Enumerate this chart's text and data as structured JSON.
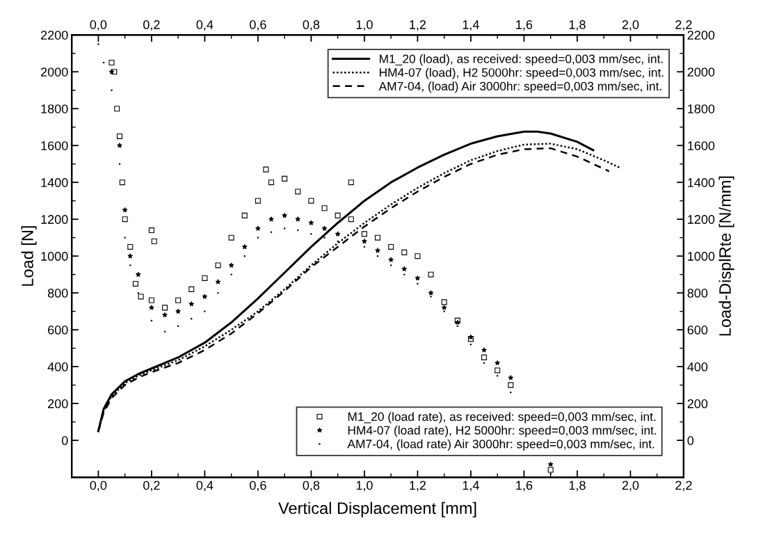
{
  "chart_data": {
    "type": "line",
    "xlabel": "Vertical Displacement [mm]",
    "ylabel": "Load [N]",
    "y2label": "Load-DisplRte [N/mm]",
    "xlim": [
      -0.1,
      2.2
    ],
    "ylim": [
      -200,
      2200
    ],
    "y2lim": [
      -200,
      2200
    ],
    "x2lim": [
      -0.1,
      2.2
    ],
    "xticks": [
      {
        "value": 0,
        "label": "0,0"
      },
      {
        "value": 0.2,
        "label": "0,2"
      },
      {
        "value": 0.4,
        "label": "0,4"
      },
      {
        "value": 0.6,
        "label": "0,6"
      },
      {
        "value": 0.8,
        "label": "0,8"
      },
      {
        "value": 1.0,
        "label": "1,0"
      },
      {
        "value": 1.2,
        "label": "1,2"
      },
      {
        "value": 1.4,
        "label": "1,4"
      },
      {
        "value": 1.6,
        "label": "1,6"
      },
      {
        "value": 1.8,
        "label": "1,8"
      },
      {
        "value": 2.0,
        "label": "2,0"
      },
      {
        "value": 2.2,
        "label": "2,2"
      }
    ],
    "x2ticks": [
      {
        "value": 0,
        "label": "0,0"
      },
      {
        "value": 0.2,
        "label": "0,2"
      },
      {
        "value": 0.4,
        "label": "0,4"
      },
      {
        "value": 0.6,
        "label": "0,6"
      },
      {
        "value": 0.8,
        "label": "0,8"
      },
      {
        "value": 1.0,
        "label": "1,0"
      },
      {
        "value": 1.2,
        "label": "1,2"
      },
      {
        "value": 1.4,
        "label": "1,4"
      },
      {
        "value": 1.6,
        "label": "1,6"
      },
      {
        "value": 1.8,
        "label": "1,8"
      },
      {
        "value": 2.0,
        "label": "2,0"
      },
      {
        "value": 2.2,
        "label": "2,2"
      }
    ],
    "yticks": [
      0,
      200,
      400,
      600,
      800,
      1000,
      1200,
      1400,
      1600,
      1800,
      2000,
      2200
    ],
    "y2ticks": [
      0,
      200,
      400,
      600,
      800,
      1000,
      1200,
      1400,
      1600,
      1800,
      2000,
      2200
    ],
    "grid": false,
    "legend": [
      "top right",
      "bottom right"
    ],
    "series": [
      {
        "name": "M1_20 (load), as received: speed=0,003 mm/sec, int.",
        "line_style": "solid",
        "color": "#000000",
        "x": [
          0,
          0.02,
          0.05,
          0.1,
          0.15,
          0.2,
          0.3,
          0.4,
          0.5,
          0.6,
          0.7,
          0.8,
          0.9,
          1.0,
          1.1,
          1.2,
          1.3,
          1.4,
          1.5,
          1.6,
          1.65,
          1.7,
          1.8,
          1.86
        ],
        "values": [
          50,
          170,
          250,
          320,
          360,
          390,
          450,
          530,
          640,
          770,
          910,
          1050,
          1180,
          1300,
          1400,
          1480,
          1550,
          1610,
          1650,
          1675,
          1675,
          1665,
          1620,
          1575
        ]
      },
      {
        "name": "HM4-07 (load), H2 5000hr: speed=0,003 mm/sec, int.",
        "line_style": "dotted",
        "color": "#000000",
        "x": [
          0,
          0.02,
          0.05,
          0.1,
          0.15,
          0.2,
          0.3,
          0.4,
          0.5,
          0.6,
          0.7,
          0.8,
          0.9,
          1.0,
          1.1,
          1.2,
          1.3,
          1.4,
          1.5,
          1.6,
          1.7,
          1.8,
          1.9,
          1.96
        ],
        "values": [
          50,
          160,
          240,
          310,
          350,
          380,
          435,
          510,
          600,
          700,
          820,
          950,
          1070,
          1180,
          1280,
          1370,
          1450,
          1520,
          1570,
          1605,
          1610,
          1580,
          1520,
          1480
        ]
      },
      {
        "name": "AM7-04, (load) Air 3000hr: speed=0,003 mm/sec, int.",
        "line_style": "dashed",
        "color": "#000000",
        "x": [
          0,
          0.02,
          0.05,
          0.1,
          0.15,
          0.2,
          0.3,
          0.4,
          0.5,
          0.6,
          0.7,
          0.8,
          0.9,
          1.0,
          1.1,
          1.2,
          1.3,
          1.4,
          1.5,
          1.6,
          1.7,
          1.8,
          1.92
        ],
        "values": [
          50,
          150,
          230,
          300,
          340,
          370,
          420,
          490,
          580,
          690,
          810,
          940,
          1050,
          1160,
          1260,
          1350,
          1430,
          1500,
          1550,
          1580,
          1585,
          1540,
          1460
        ]
      },
      {
        "name": "M1_20 (load rate), as received: speed=0,003 mm/sec, int.",
        "type": "scatter",
        "axis": "y2",
        "marker": "square",
        "color": "#000000",
        "x": [
          0.05,
          0.06,
          0.07,
          0.08,
          0.09,
          0.1,
          0.12,
          0.14,
          0.16,
          0.2,
          0.2,
          0.21,
          0.25,
          0.3,
          0.35,
          0.4,
          0.45,
          0.5,
          0.55,
          0.6,
          0.63,
          0.65,
          0.7,
          0.75,
          0.8,
          0.85,
          0.9,
          0.95,
          0.95,
          1.0,
          1.05,
          1.1,
          1.15,
          1.2,
          1.25,
          1.3,
          1.35,
          1.4,
          1.45,
          1.5,
          1.55,
          1.7
        ],
        "values": [
          2050,
          2000,
          1800,
          1650,
          1400,
          1200,
          1050,
          850,
          780,
          760,
          1140,
          1080,
          720,
          760,
          820,
          880,
          950,
          1100,
          1220,
          1300,
          1470,
          1400,
          1420,
          1350,
          1300,
          1260,
          1220,
          1400,
          1200,
          1120,
          1100,
          1050,
          1020,
          1000,
          900,
          750,
          650,
          550,
          450,
          380,
          300,
          -160
        ]
      },
      {
        "name": "HM4-07 (load rate), H2 5000hr: speed=0,003 mm/sec, int.",
        "type": "scatter",
        "axis": "y2",
        "marker": "star",
        "color": "#000000",
        "x": [
          0.05,
          0.08,
          0.1,
          0.12,
          0.15,
          0.2,
          0.25,
          0.3,
          0.35,
          0.4,
          0.45,
          0.5,
          0.55,
          0.6,
          0.65,
          0.7,
          0.75,
          0.8,
          0.85,
          0.9,
          1.0,
          1.05,
          1.1,
          1.15,
          1.2,
          1.25,
          1.3,
          1.35,
          1.4,
          1.45,
          1.5,
          1.55,
          1.7
        ],
        "values": [
          2000,
          1600,
          1250,
          1000,
          900,
          720,
          680,
          700,
          740,
          780,
          860,
          950,
          1050,
          1150,
          1200,
          1220,
          1200,
          1180,
          1150,
          1120,
          1080,
          1030,
          980,
          930,
          880,
          800,
          720,
          640,
          560,
          490,
          420,
          340,
          -130
        ]
      },
      {
        "name": "AM7-04, (load rate) Air 3000hr: speed=0,003 mm/sec, int.",
        "type": "scatter",
        "axis": "y2",
        "marker": "circle",
        "color": "#000000",
        "x": [
          0.0,
          0.02,
          0.05,
          0.08,
          0.1,
          0.12,
          0.15,
          0.2,
          0.25,
          0.3,
          0.35,
          0.4,
          0.45,
          0.5,
          0.55,
          0.6,
          0.65,
          0.7,
          0.75,
          0.8,
          0.85,
          0.9,
          1.0,
          1.05,
          1.1,
          1.15,
          1.2,
          1.25,
          1.3,
          1.35,
          1.4,
          1.45,
          1.5,
          1.55,
          1.7
        ],
        "values": [
          2150,
          2050,
          1900,
          1500,
          1100,
          950,
          800,
          650,
          590,
          620,
          660,
          700,
          800,
          900,
          1000,
          1100,
          1130,
          1150,
          1140,
          1120,
          1100,
          1080,
          1050,
          1000,
          950,
          900,
          850,
          780,
          700,
          620,
          520,
          420,
          350,
          260,
          -180
        ]
      }
    ]
  }
}
